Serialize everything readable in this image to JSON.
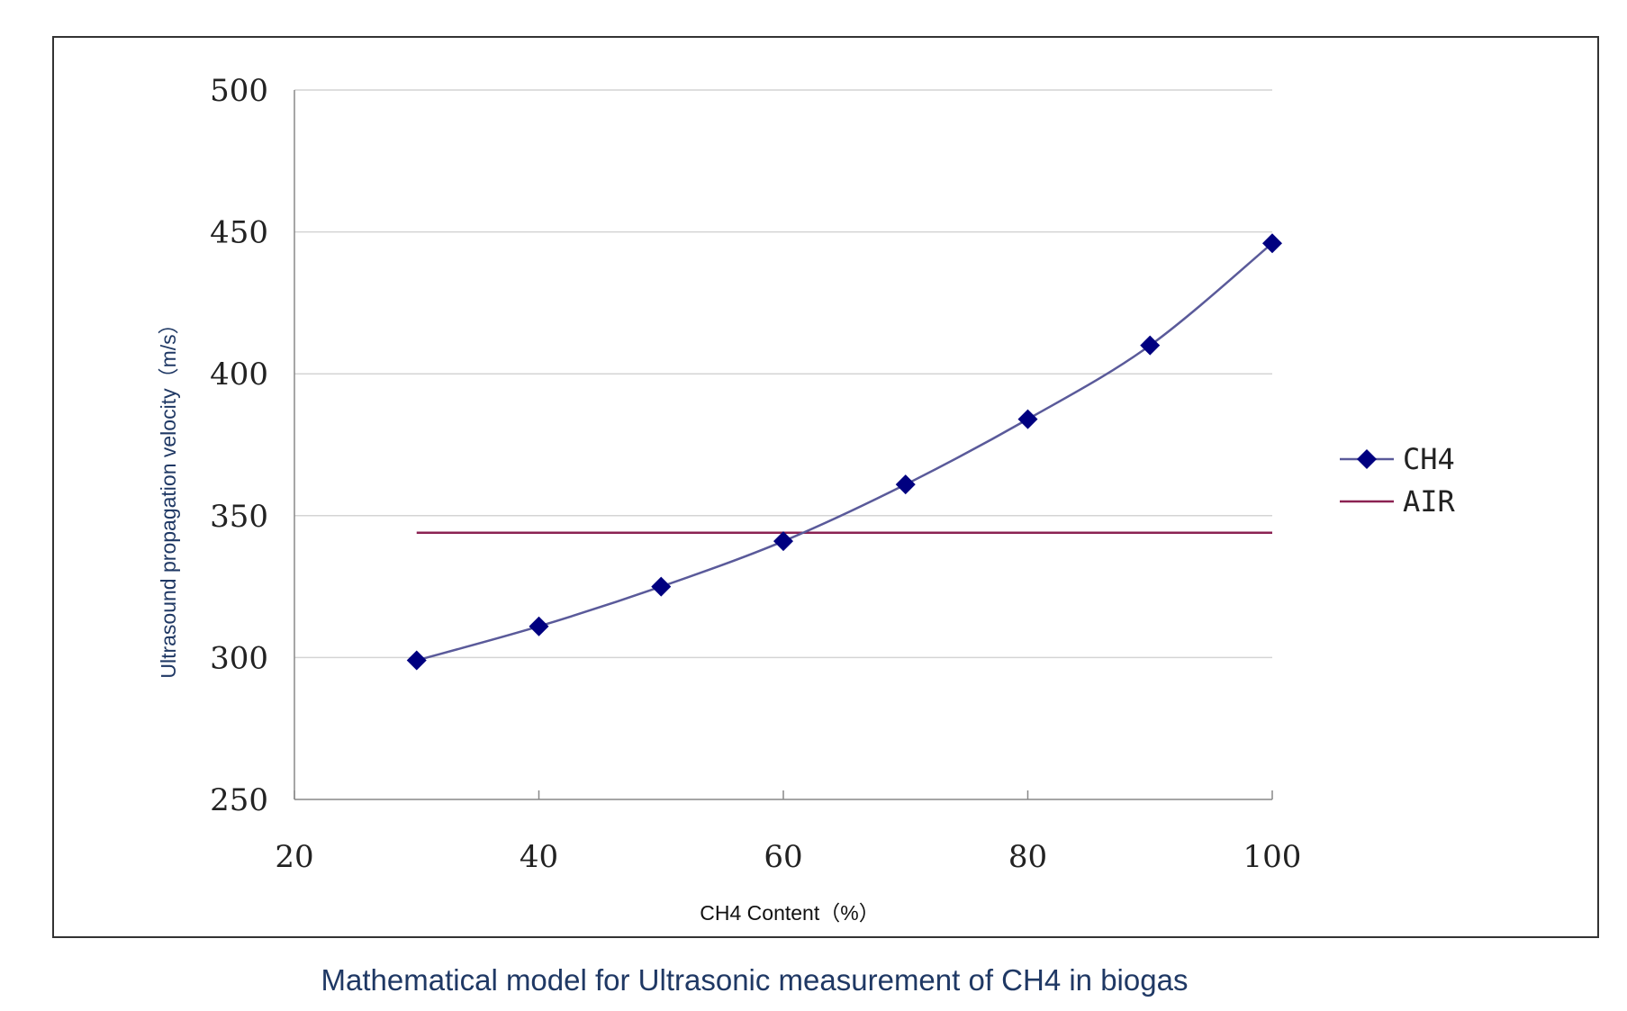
{
  "chart_data": {
    "type": "line",
    "xlabel": "CH4 Content（%）",
    "ylabel": "Ultrasound propagation velocity（m/s）",
    "caption": "Mathematical model for Ultrasonic measurement of CH4 in biogas",
    "xlim": [
      20,
      100
    ],
    "ylim": [
      250,
      500
    ],
    "x_ticks": [
      20,
      40,
      60,
      80,
      100
    ],
    "y_ticks": [
      250,
      300,
      350,
      400,
      450,
      500
    ],
    "grid": "horizontal",
    "legend_position": "right",
    "series": [
      {
        "name": "CH4",
        "color": "#000080",
        "line_color": "#5a5a9a",
        "marker": "diamond",
        "x": [
          30,
          40,
          50,
          60,
          70,
          80,
          90,
          100
        ],
        "y": [
          299,
          311,
          325,
          341,
          361,
          384,
          410,
          446
        ]
      },
      {
        "name": "AIR",
        "color": "#8b2252",
        "marker": "none",
        "x": [
          30,
          100
        ],
        "y": [
          344,
          344
        ]
      }
    ]
  }
}
